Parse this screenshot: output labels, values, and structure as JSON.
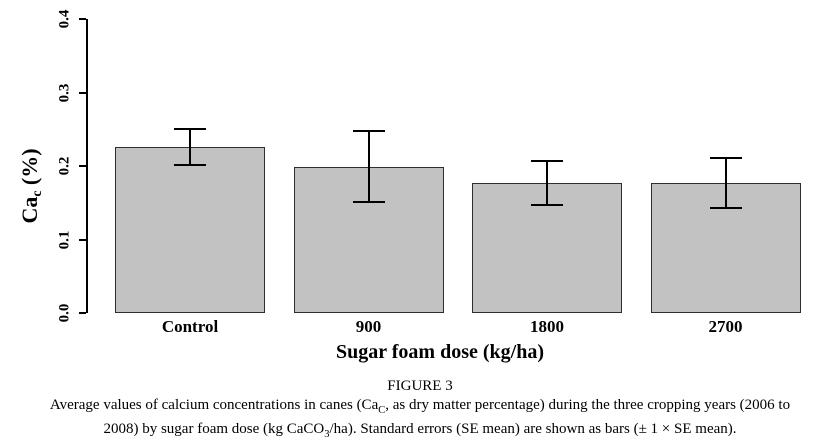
{
  "chart_data": {
    "type": "bar",
    "categories": [
      "Control",
      "900",
      "1800",
      "2700"
    ],
    "values": [
      0.226,
      0.199,
      0.177,
      0.177
    ],
    "errors": [
      0.025,
      0.048,
      0.03,
      0.034
    ],
    "title": "",
    "xlabel": "Sugar foam dose (kg/ha)",
    "ylabel_pre": "Ca",
    "ylabel_sub": "c",
    "ylabel_post": " (%)",
    "ylim": [
      0,
      0.4
    ],
    "yticks": [
      0.0,
      0.1,
      0.2,
      0.3,
      0.4
    ],
    "ytick_labels": [
      "0.0",
      "0.1",
      "0.2",
      "0.3",
      "0.4"
    ],
    "grid": false,
    "legend": null,
    "bar_fill": "#c2c2c2",
    "bar_border": "#2e2e2e",
    "axis_color": "#000000",
    "error_color": "#000000"
  },
  "caption": {
    "figure_label": "FIGURE 3",
    "line1_pre": "Average values of calcium concentrations in canes (Ca",
    "line1_sub": "C",
    "line1_post": ", as dry matter percentage) during the three cropping years (2006 to",
    "line2_pre": "2008) by sugar foam dose (kg CaCO",
    "line2_sub": "3",
    "line2_post": "/ha). Standard errors (SE mean) are shown as bars (± 1 × SE mean)."
  }
}
